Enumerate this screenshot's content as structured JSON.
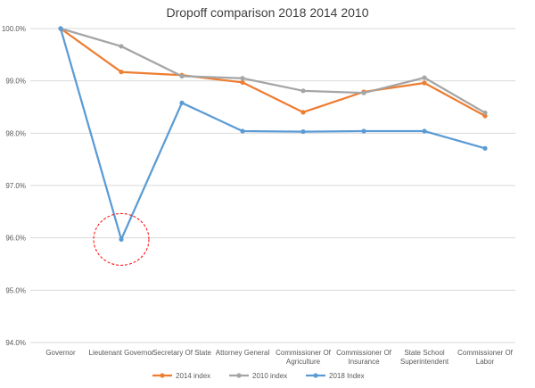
{
  "chart_data": {
    "type": "line",
    "title": "Dropoff comparison 2018 2014 2010",
    "xlabel": "",
    "ylabel": "",
    "ylim": [
      94.0,
      100.0
    ],
    "yticks": [
      "94.0%",
      "95.0%",
      "96.0%",
      "97.0%",
      "98.0%",
      "99.0%",
      "100.0%"
    ],
    "ytick_values": [
      94,
      95,
      96,
      97,
      98,
      99,
      100
    ],
    "categories": [
      [
        "Governor"
      ],
      [
        "Lieutenant Governor"
      ],
      [
        "Secretary Of State"
      ],
      [
        "Attorney General"
      ],
      [
        "Commissioner Of",
        "Agriculture"
      ],
      [
        "Commissioner Of",
        "Insurance"
      ],
      [
        "State School",
        "Superintendent"
      ],
      [
        "Commissioner Of",
        "Labor"
      ]
    ],
    "series": [
      {
        "name": "2014 index",
        "color": "#ed7d31",
        "values": [
          100.0,
          99.17,
          99.11,
          98.97,
          98.4,
          98.79,
          98.96,
          98.33
        ]
      },
      {
        "name": "2010 index",
        "color": "#a5a5a5",
        "values": [
          100.0,
          99.66,
          99.09,
          99.05,
          98.81,
          98.77,
          99.06,
          98.39
        ]
      },
      {
        "name": "2018 Index",
        "color": "#5b9bd5",
        "values": [
          100.0,
          95.97,
          98.58,
          98.04,
          98.03,
          98.04,
          98.04,
          97.71
        ]
      }
    ],
    "annotation": {
      "type": "dashed-circle",
      "color": "#ff0000",
      "series": "2018 Index",
      "category_index": 1
    },
    "grid": true,
    "legend": "bottom"
  }
}
